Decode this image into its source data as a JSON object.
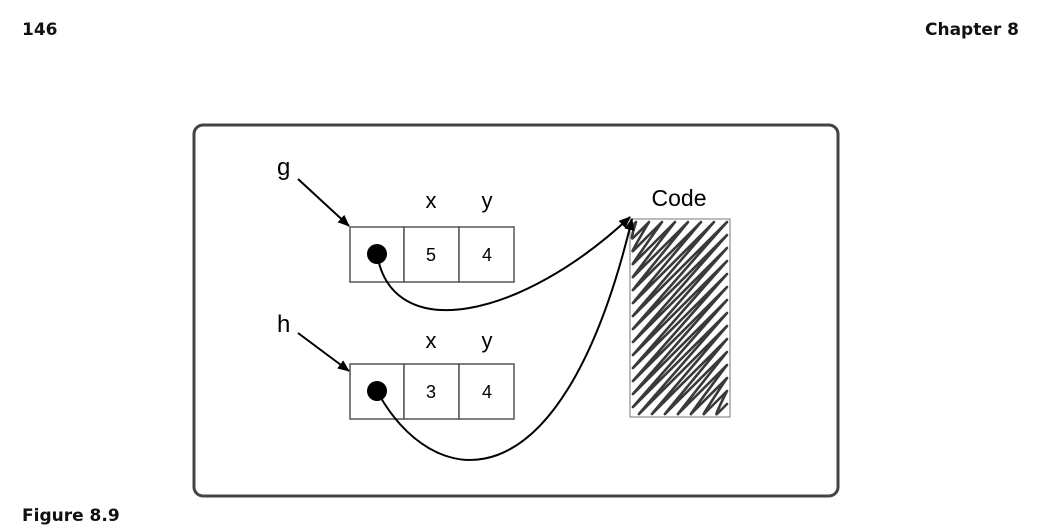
{
  "header": {
    "page_number": "146",
    "chapter": "Chapter 8"
  },
  "caption": "Figure 8.9",
  "diagram": {
    "objects": [
      {
        "variable": "g",
        "fields": [
          {
            "name": "x",
            "value": "5"
          },
          {
            "name": "y",
            "value": "4"
          }
        ]
      },
      {
        "variable": "h",
        "fields": [
          {
            "name": "x",
            "value": "3"
          },
          {
            "name": "y",
            "value": "4"
          }
        ]
      }
    ],
    "code_label": "Code",
    "colors": {
      "frame": "#444444",
      "box_border": "#555555",
      "hatch": "#3a3a3a",
      "ink": "#000000"
    }
  }
}
